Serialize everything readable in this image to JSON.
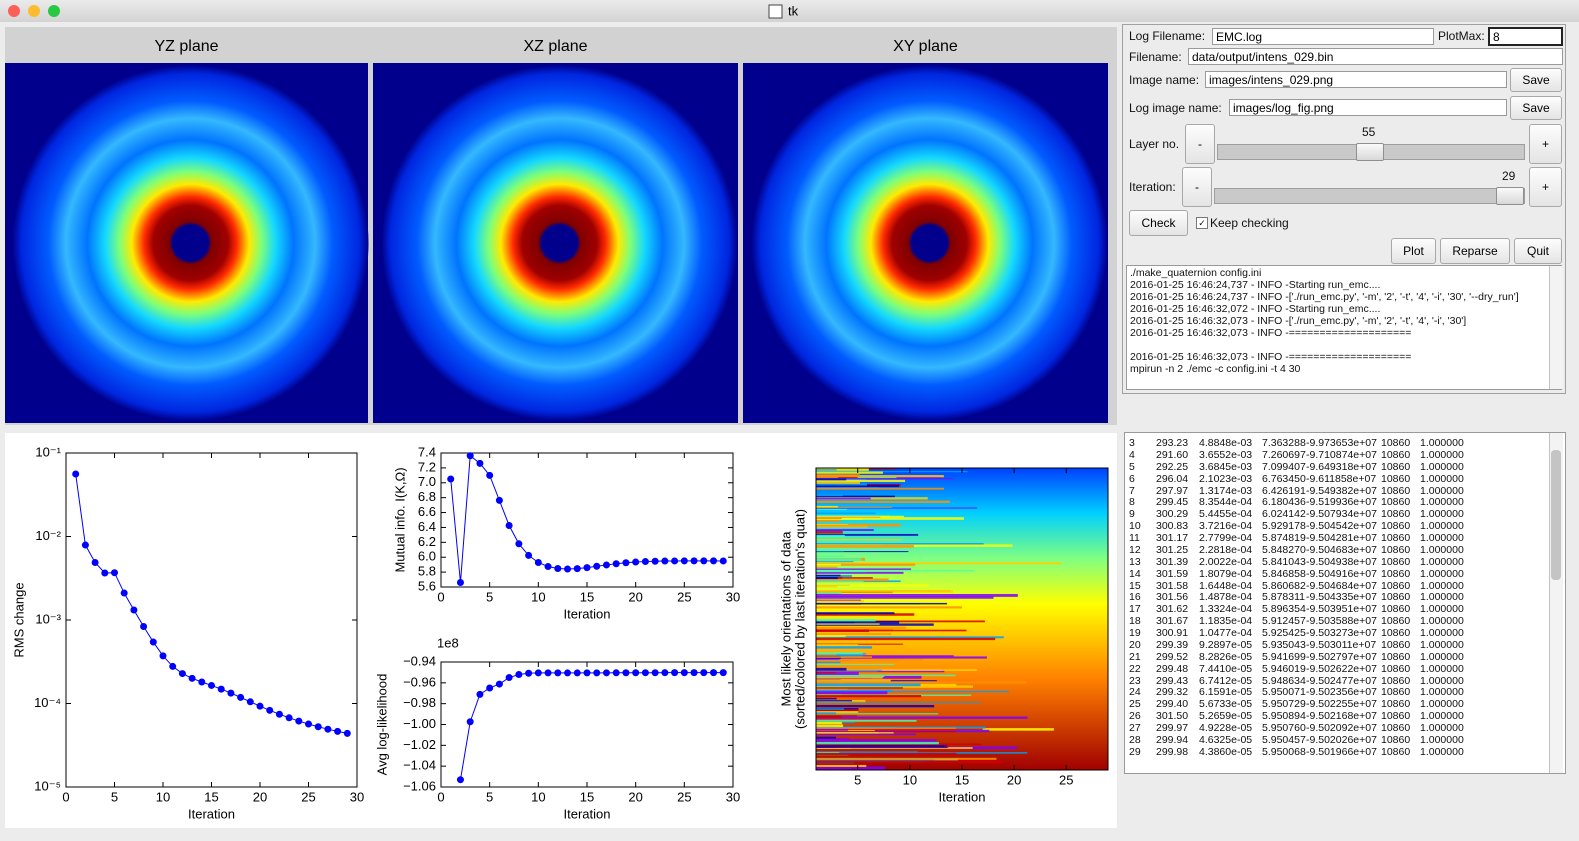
{
  "window": {
    "title": "tk"
  },
  "planes": [
    "YZ plane",
    "XZ plane",
    "XY plane"
  ],
  "controls": {
    "log_filename": {
      "label": "Log Filename:",
      "value": "EMC.log"
    },
    "plotmax": {
      "label": "PlotMax:",
      "value": "8"
    },
    "filename": {
      "label": "Filename:",
      "value": "data/output/intens_029.bin"
    },
    "image_name": {
      "label": "Image name:",
      "value": "images/intens_029.png",
      "button": "Save"
    },
    "log_image_name": {
      "label": "Log image name:",
      "value": "images/log_fig.png",
      "button": "Save"
    },
    "layer": {
      "label": "Layer no.",
      "value": 55,
      "minus": "-",
      "plus": "+"
    },
    "iteration": {
      "label": "Iteration:",
      "value": 29,
      "minus": "-",
      "plus": "+"
    },
    "check": "Check",
    "keep_checking": "Keep checking",
    "plot": "Plot",
    "reparse": "Reparse",
    "quit": "Quit"
  },
  "log": [
    "./make_quaternion config.ini",
    "2016-01-25 16:46:24,737 - INFO -Starting run_emc....",
    "2016-01-25 16:46:24,737 - INFO -['./run_emc.py', '-m', '2', '-t', '4', '-i', '30', '--dry_run']",
    "2016-01-25 16:46:32,072 - INFO -Starting run_emc....",
    "2016-01-25 16:46:32,073 - INFO -['./run_emc.py', '-m', '2', '-t', '4', '-i', '30']",
    "2016-01-25 16:46:32,073 - INFO -====================",
    "2016-01-25 16:46:32,073 - INFO -====================",
    "mpirun -n 2 ./emc -c config.ini -t 4  30"
  ],
  "plots": [
    {
      "type": "line",
      "log_y": true,
      "color": "#0000ff",
      "xlabel": "Iteration",
      "ylabel": "RMS change",
      "xlim": [
        0,
        30
      ],
      "ylim": [
        1e-05,
        0.1
      ],
      "xticks": [
        0,
        5,
        10,
        15,
        20,
        25,
        30
      ],
      "yticks": [
        {
          "value": 1e-05,
          "label": "10⁻⁵"
        },
        {
          "value": 0.0001,
          "label": "10⁻⁴"
        },
        {
          "value": 0.001,
          "label": "10⁻³"
        },
        {
          "value": 0.01,
          "label": "10⁻²"
        },
        {
          "value": 0.1,
          "label": "10⁻¹"
        }
      ],
      "x": [
        1,
        2,
        3,
        4,
        5,
        6,
        7,
        8,
        9,
        10,
        11,
        12,
        13,
        14,
        15,
        16,
        17,
        18,
        19,
        20,
        21,
        22,
        23,
        24,
        25,
        26,
        27,
        28,
        29
      ],
      "values": [
        0.056,
        0.0079,
        0.0048848,
        0.0036552,
        0.0036845,
        0.0021023,
        0.0013174,
        0.00083544,
        0.00054455,
        0.00037216,
        0.00027799,
        0.00022818,
        0.00020022,
        0.00018079,
        0.00016448,
        0.00014878,
        0.00013324,
        0.00011835,
        0.00010477,
        9.2897e-05,
        8.2826e-05,
        7.441e-05,
        6.7412e-05,
        6.1591e-05,
        5.6733e-05,
        5.2659e-05,
        4.9228e-05,
        4.6325e-05,
        4.386e-05
      ]
    },
    {
      "type": "line",
      "color": "#0000ff",
      "xlabel": "Iteration",
      "ylabel": "Mutual info. I(K,Ω)",
      "xlim": [
        0,
        30
      ],
      "ylim": [
        5.6,
        7.4
      ],
      "xticks": [
        0,
        5,
        10,
        15,
        20,
        25,
        30
      ],
      "yticks": [
        5.6,
        5.8,
        {
          "value": 6,
          "label": "6.0"
        },
        6.2,
        6.4,
        6.6,
        6.8,
        {
          "value": 7,
          "label": "7.0"
        },
        7.2,
        7.4
      ],
      "x": [
        1,
        2,
        3,
        4,
        5,
        6,
        7,
        8,
        9,
        10,
        11,
        12,
        13,
        14,
        15,
        16,
        17,
        18,
        19,
        20,
        21,
        22,
        23,
        24,
        25,
        26,
        27,
        28,
        29
      ],
      "values": [
        7.05,
        5.66,
        7.363288,
        7.260697,
        7.099407,
        6.76345,
        6.426191,
        6.180436,
        6.024142,
        5.929178,
        5.874819,
        5.84827,
        5.841043,
        5.846858,
        5.860682,
        5.878311,
        5.896354,
        5.912457,
        5.925425,
        5.935043,
        5.941699,
        5.946019,
        5.948634,
        5.950071,
        5.950729,
        5.950894,
        5.95076,
        5.950457,
        5.950068
      ]
    },
    {
      "type": "line",
      "color": "#0000ff",
      "xlabel": "Iteration",
      "ylabel": "Avg log-likelihood",
      "offset_label": "1e8",
      "xlim": [
        0,
        30
      ],
      "ylim": [
        -1.06,
        -0.94
      ],
      "xticks": [
        0,
        5,
        10,
        15,
        20,
        25,
        30
      ],
      "yticks": [
        {
          "value": -1.06,
          "label": "−1.06"
        },
        {
          "value": -1.04,
          "label": "−1.04"
        },
        {
          "value": -1.02,
          "label": "−1.02"
        },
        {
          "value": -1.0,
          "label": "−1.00"
        },
        {
          "value": -0.98,
          "label": "−0.98"
        },
        {
          "value": -0.96,
          "label": "−0.96"
        },
        {
          "value": -0.94,
          "label": "−0.94"
        }
      ],
      "x": [
        1,
        2,
        3,
        4,
        5,
        6,
        7,
        8,
        9,
        10,
        11,
        12,
        13,
        14,
        15,
        16,
        17,
        18,
        19,
        20,
        21,
        22,
        23,
        24,
        25,
        26,
        27,
        28,
        29
      ],
      "values": [
        null,
        -1.053,
        -0.9973653,
        -0.9710874,
        -0.9649318,
        -0.9611858,
        -0.9549382,
        -0.9519936,
        -0.9507934,
        -0.9504542,
        -0.9504281,
        -0.9504683,
        -0.9504938,
        -0.9504916,
        -0.9504684,
        -0.9504335,
        -0.9503951,
        -0.9503588,
        -0.9503273,
        -0.9503011,
        -0.9502797,
        -0.9502622,
        -0.9502477,
        -0.9502356,
        -0.9502255,
        -0.9502168,
        -0.9502092,
        -0.9502026,
        -0.9501966
      ]
    },
    {
      "type": "image",
      "xlabel": "Iteration",
      "ylabel": [
        "Most likely orientations of data",
        "(sorted/colored by last iteration's quat)"
      ],
      "xlim": [
        1,
        29
      ],
      "xticks": [
        5,
        10,
        15,
        20,
        25
      ]
    }
  ],
  "table": {
    "rows": [
      [
        "3",
        "293.23",
        "4.8848e-03",
        "7.363288",
        "-9.973653e+07",
        "10860",
        "1.000000"
      ],
      [
        "4",
        "291.60",
        "3.6552e-03",
        "7.260697",
        "-9.710874e+07",
        "10860",
        "1.000000"
      ],
      [
        "5",
        "292.25",
        "3.6845e-03",
        "7.099407",
        "-9.649318e+07",
        "10860",
        "1.000000"
      ],
      [
        "6",
        "296.04",
        "2.1023e-03",
        "6.763450",
        "-9.611858e+07",
        "10860",
        "1.000000"
      ],
      [
        "7",
        "297.97",
        "1.3174e-03",
        "6.426191",
        "-9.549382e+07",
        "10860",
        "1.000000"
      ],
      [
        "8",
        "299.45",
        "8.3544e-04",
        "6.180436",
        "-9.519936e+07",
        "10860",
        "1.000000"
      ],
      [
        "9",
        "300.29",
        "5.4455e-04",
        "6.024142",
        "-9.507934e+07",
        "10860",
        "1.000000"
      ],
      [
        "10",
        "300.83",
        "3.7216e-04",
        "5.929178",
        "-9.504542e+07",
        "10860",
        "1.000000"
      ],
      [
        "11",
        "301.17",
        "2.7799e-04",
        "5.874819",
        "-9.504281e+07",
        "10860",
        "1.000000"
      ],
      [
        "12",
        "301.25",
        "2.2818e-04",
        "5.848270",
        "-9.504683e+07",
        "10860",
        "1.000000"
      ],
      [
        "13",
        "301.39",
        "2.0022e-04",
        "5.841043",
        "-9.504938e+07",
        "10860",
        "1.000000"
      ],
      [
        "14",
        "301.59",
        "1.8079e-04",
        "5.846858",
        "-9.504916e+07",
        "10860",
        "1.000000"
      ],
      [
        "15",
        "301.58",
        "1.6448e-04",
        "5.860682",
        "-9.504684e+07",
        "10860",
        "1.000000"
      ],
      [
        "16",
        "301.56",
        "1.4878e-04",
        "5.878311",
        "-9.504335e+07",
        "10860",
        "1.000000"
      ],
      [
        "17",
        "301.62",
        "1.3324e-04",
        "5.896354",
        "-9.503951e+07",
        "10860",
        "1.000000"
      ],
      [
        "18",
        "301.67",
        "1.1835e-04",
        "5.912457",
        "-9.503588e+07",
        "10860",
        "1.000000"
      ],
      [
        "19",
        "300.91",
        "1.0477e-04",
        "5.925425",
        "-9.503273e+07",
        "10860",
        "1.000000"
      ],
      [
        "20",
        "299.39",
        "9.2897e-05",
        "5.935043",
        "-9.503011e+07",
        "10860",
        "1.000000"
      ],
      [
        "21",
        "299.52",
        "8.2826e-05",
        "5.941699",
        "-9.502797e+07",
        "10860",
        "1.000000"
      ],
      [
        "22",
        "299.48",
        "7.4410e-05",
        "5.946019",
        "-9.502622e+07",
        "10860",
        "1.000000"
      ],
      [
        "23",
        "299.43",
        "6.7412e-05",
        "5.948634",
        "-9.502477e+07",
        "10860",
        "1.000000"
      ],
      [
        "24",
        "299.32",
        "6.1591e-05",
        "5.950071",
        "-9.502356e+07",
        "10860",
        "1.000000"
      ],
      [
        "25",
        "299.40",
        "5.6733e-05",
        "5.950729",
        "-9.502255e+07",
        "10860",
        "1.000000"
      ],
      [
        "26",
        "301.50",
        "5.2659e-05",
        "5.950894",
        "-9.502168e+07",
        "10860",
        "1.000000"
      ],
      [
        "27",
        "299.97",
        "4.9228e-05",
        "5.950760",
        "-9.502092e+07",
        "10860",
        "1.000000"
      ],
      [
        "28",
        "299.94",
        "4.6325e-05",
        "5.950457",
        "-9.502026e+07",
        "10860",
        "1.000000"
      ],
      [
        "29",
        "299.98",
        "4.3860e-05",
        "5.950068",
        "-9.501966e+07",
        "10860",
        "1.000000"
      ]
    ]
  }
}
